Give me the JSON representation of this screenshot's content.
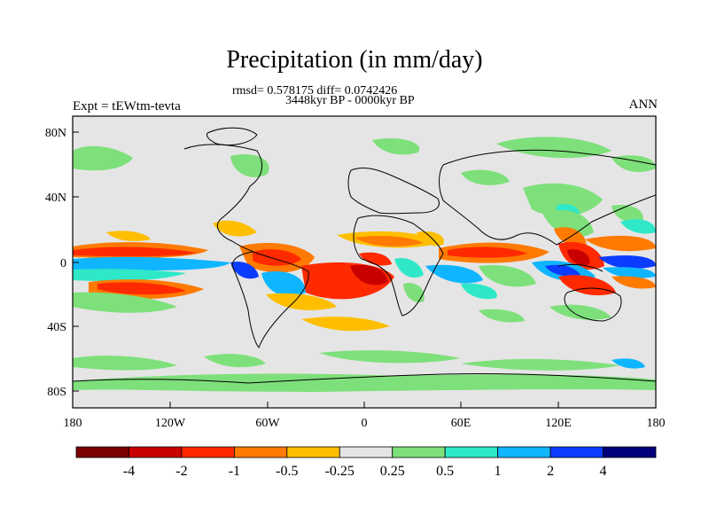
{
  "title": "Precipitation (in mm/day)",
  "stats_line": "rmsd= 0.578175 diff= 0.0742426",
  "period_line": "3448kyr BP - 0000kyr BP",
  "experiment_label": "Expt = tEWtm-tevta",
  "season_label": "ANN",
  "lat_ticks": [
    "80N",
    "40N",
    "0",
    "40S",
    "80S"
  ],
  "lon_ticks": [
    "180",
    "120W",
    "60W",
    "0",
    "60E",
    "120E",
    "180"
  ],
  "colorbar": {
    "colors": [
      "#7a0000",
      "#c80000",
      "#ff2a00",
      "#ff7a00",
      "#ffbf00",
      "#e5e5e5",
      "#7ee07a",
      "#2ee8c8",
      "#0fb6ff",
      "#0a3cff",
      "#00007a"
    ],
    "labels": [
      "-4",
      "-2",
      "-1",
      "-0.5",
      "-0.25",
      "0.25",
      "0.5",
      "1",
      "2",
      "4"
    ]
  },
  "colors": {
    "ocean_bg": "#e5e5e5",
    "coast": "#000000"
  }
}
